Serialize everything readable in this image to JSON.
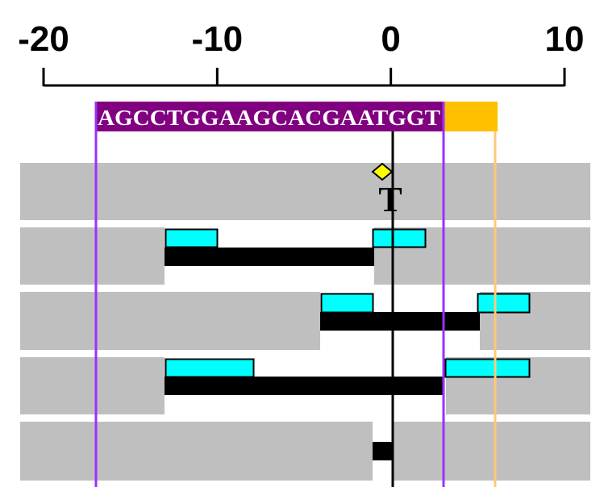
{
  "axis": {
    "ticks": [
      -20,
      -10,
      0,
      10
    ]
  },
  "sequence": "AGCCTGGAAGCACGAATGGT",
  "tracks": [
    {
      "label": "T"
    }
  ]
}
